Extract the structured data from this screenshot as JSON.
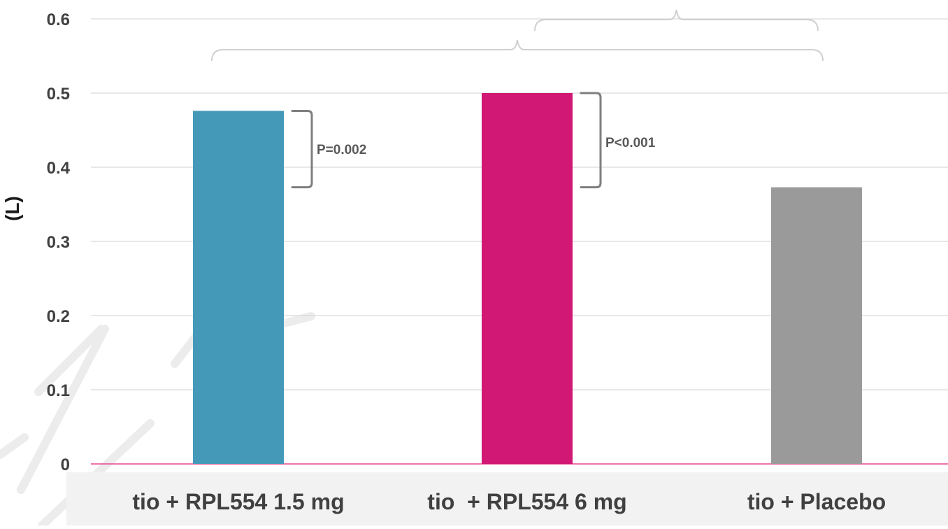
{
  "chart_data": {
    "type": "bar",
    "ylabel": "(L)",
    "ylim": [
      0,
      0.6
    ],
    "yticks": [
      "0",
      "0.1",
      "0.2",
      "0.3",
      "0.4",
      "0.5",
      "0.6"
    ],
    "categories": [
      "tio + RPL554 1.5 mg",
      "tio  + RPL554 6 mg",
      "tio + Placebo"
    ],
    "values": [
      0.476,
      0.5,
      0.373
    ],
    "colors": [
      "#4599b8",
      "#d11875",
      "#9a9a9a"
    ],
    "grid": true,
    "annotations": [
      {
        "text": "P=0.002",
        "category_index": 0,
        "from": 0.476,
        "to": 0.373
      },
      {
        "text": "P<0.001",
        "category_index": 1,
        "from": 0.5,
        "to": 0.373
      }
    ],
    "comparison_braces": [
      {
        "between": [
          0,
          2
        ]
      },
      {
        "between": [
          1,
          2
        ]
      }
    ]
  },
  "colors": {
    "gridline": "#d9d9d9",
    "baseline": "#e8468f",
    "category_band": "#f2f2f2",
    "bracket": "#7f7f7f",
    "watermark": "#ececec"
  }
}
